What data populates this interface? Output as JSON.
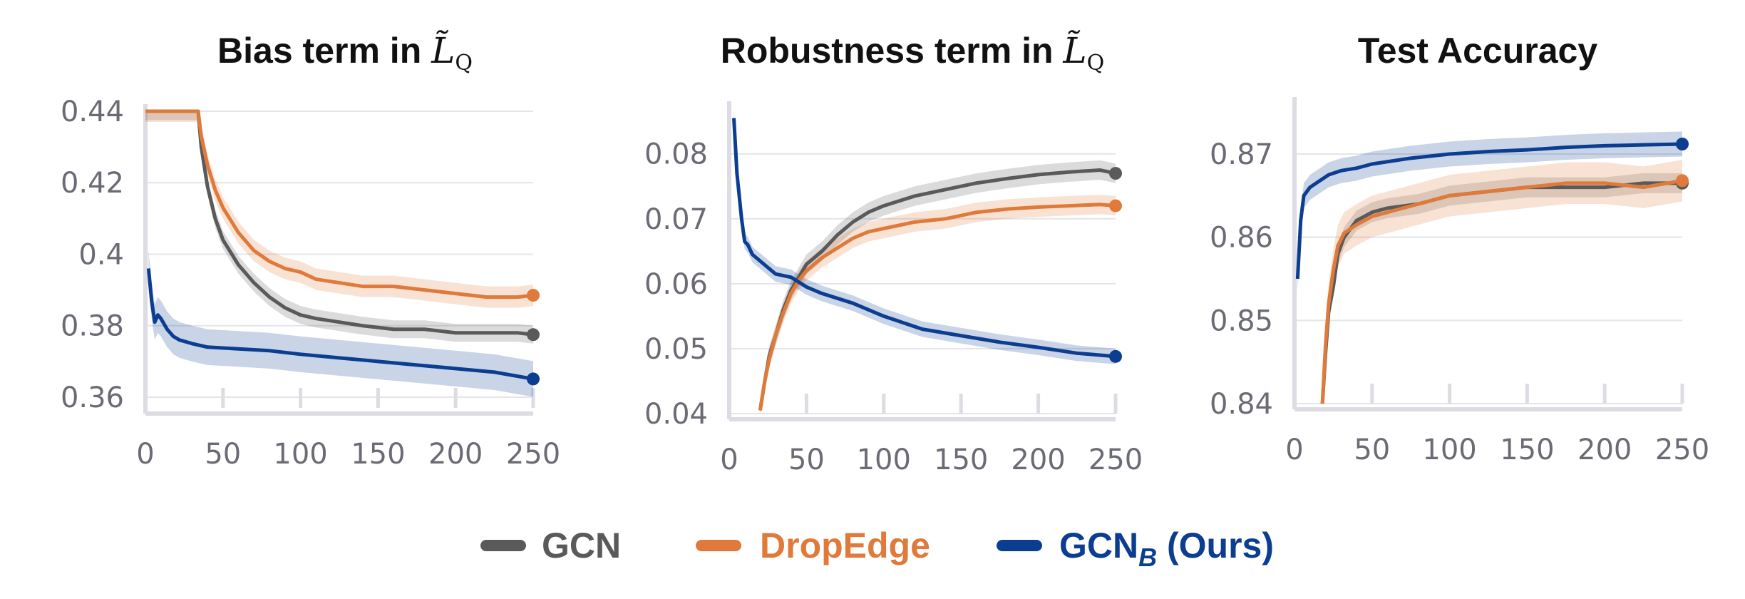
{
  "legend": [
    {
      "label": "GCN",
      "color": "#5a5a5a"
    },
    {
      "label": "DropEdge",
      "color": "#e07a3a"
    },
    {
      "label_main": "GCN",
      "label_sub": "B",
      "label_tail": " (Ours)",
      "color": "#0b3d91"
    }
  ],
  "chart_data": [
    {
      "type": "line",
      "title": "Bias term in ",
      "title_math": "L̃",
      "title_sub": "Q",
      "xlabel": "",
      "ylabel": "",
      "xlim": [
        0,
        250
      ],
      "ylim": [
        0.357,
        0.44
      ],
      "xticks": [
        0,
        50,
        100,
        150,
        200,
        250
      ],
      "xtick_labels": [
        "0",
        "50",
        "100",
        "150",
        "200",
        "250"
      ],
      "yticks": [
        0.36,
        0.38,
        0.4,
        0.42,
        0.44
      ],
      "ytick_labels": [
        "0.36",
        "0.38",
        "0.4",
        "0.42",
        "0.44"
      ],
      "series": [
        {
          "name": "GCN",
          "color": "#5a5a5a",
          "x": [
            0,
            34,
            36,
            40,
            45,
            50,
            60,
            70,
            80,
            90,
            100,
            110,
            125,
            140,
            160,
            180,
            200,
            220,
            240,
            250
          ],
          "y": [
            0.44,
            0.44,
            0.43,
            0.419,
            0.41,
            0.404,
            0.397,
            0.392,
            0.388,
            0.385,
            0.383,
            0.382,
            0.381,
            0.38,
            0.379,
            0.379,
            0.378,
            0.378,
            0.378,
            0.3775
          ],
          "band": 0.0025
        },
        {
          "name": "DropEdge",
          "color": "#e07a3a",
          "x": [
            0,
            34,
            36,
            40,
            45,
            50,
            60,
            70,
            80,
            90,
            100,
            110,
            125,
            140,
            160,
            180,
            200,
            220,
            240,
            250
          ],
          "y": [
            0.44,
            0.44,
            0.433,
            0.425,
            0.418,
            0.413,
            0.406,
            0.401,
            0.398,
            0.396,
            0.395,
            0.393,
            0.392,
            0.391,
            0.391,
            0.39,
            0.389,
            0.388,
            0.388,
            0.3885
          ],
          "band": 0.003
        },
        {
          "name": "GCN_B (Ours)",
          "color": "#0b3d91",
          "x": [
            2,
            4,
            6,
            8,
            10,
            14,
            18,
            22,
            30,
            40,
            60,
            80,
            100,
            125,
            150,
            175,
            200,
            225,
            250
          ],
          "y": [
            0.396,
            0.387,
            0.381,
            0.383,
            0.382,
            0.379,
            0.377,
            0.376,
            0.375,
            0.374,
            0.3735,
            0.373,
            0.372,
            0.371,
            0.37,
            0.369,
            0.368,
            0.367,
            0.3651
          ],
          "band": 0.005
        }
      ]
    },
    {
      "type": "line",
      "title": "Robustness term in ",
      "title_math": "L̃",
      "title_sub": "Q",
      "xlabel": "",
      "ylabel": "",
      "xlim": [
        0,
        250
      ],
      "ylim": [
        0.04,
        0.087
      ],
      "xticks": [
        0,
        50,
        100,
        150,
        200,
        250
      ],
      "xtick_labels": [
        "0",
        "50",
        "100",
        "150",
        "200",
        "250"
      ],
      "yticks": [
        0.04,
        0.05,
        0.06,
        0.07,
        0.08
      ],
      "ytick_labels": [
        "0.04",
        "0.05",
        "0.06",
        "0.07",
        "0.08"
      ],
      "series": [
        {
          "name": "GCN",
          "color": "#5a5a5a",
          "x": [
            20,
            23,
            26,
            30,
            35,
            40,
            45,
            50,
            60,
            70,
            80,
            90,
            100,
            120,
            140,
            160,
            180,
            200,
            220,
            240,
            250
          ],
          "y": [
            0.0405,
            0.045,
            0.049,
            0.052,
            0.056,
            0.059,
            0.061,
            0.063,
            0.065,
            0.0675,
            0.0695,
            0.071,
            0.072,
            0.0735,
            0.0745,
            0.0755,
            0.0762,
            0.0768,
            0.0772,
            0.0775,
            0.077
          ],
          "band": 0.0015
        },
        {
          "name": "DropEdge",
          "color": "#e07a3a",
          "x": [
            20,
            23,
            26,
            30,
            35,
            40,
            45,
            50,
            60,
            70,
            80,
            90,
            100,
            120,
            140,
            160,
            180,
            200,
            220,
            240,
            250
          ],
          "y": [
            0.0405,
            0.045,
            0.0485,
            0.052,
            0.0555,
            0.0585,
            0.0605,
            0.062,
            0.064,
            0.0655,
            0.067,
            0.068,
            0.0685,
            0.0695,
            0.07,
            0.071,
            0.0715,
            0.0718,
            0.072,
            0.0722,
            0.072
          ],
          "band": 0.0015
        },
        {
          "name": "GCN_B (Ours)",
          "color": "#0b3d91",
          "x": [
            3,
            5,
            8,
            10,
            12,
            15,
            20,
            25,
            30,
            40,
            50,
            60,
            80,
            100,
            125,
            150,
            175,
            200,
            225,
            250
          ],
          "y": [
            0.0855,
            0.077,
            0.07,
            0.0665,
            0.066,
            0.0645,
            0.0635,
            0.0625,
            0.0615,
            0.061,
            0.0595,
            0.0585,
            0.057,
            0.055,
            0.053,
            0.052,
            0.051,
            0.0502,
            0.0493,
            0.0488
          ],
          "band": 0.0012
        }
      ]
    },
    {
      "type": "line",
      "title": "Test Accuracy",
      "title_math": "",
      "title_sub": "",
      "xlabel": "",
      "ylabel": "",
      "xlim": [
        0,
        250
      ],
      "ylim": [
        0.84,
        0.876
      ],
      "xticks": [
        0,
        50,
        100,
        150,
        200,
        250
      ],
      "xtick_labels": [
        "0",
        "50",
        "100",
        "150",
        "200",
        "250"
      ],
      "yticks": [
        0.84,
        0.85,
        0.86,
        0.87
      ],
      "ytick_labels": [
        "0.84",
        "0.85",
        "0.86",
        "0.87"
      ],
      "series": [
        {
          "name": "GCN",
          "color": "#5a5a5a",
          "x": [
            18,
            20,
            22,
            25,
            28,
            32,
            36,
            40,
            50,
            60,
            80,
            100,
            125,
            150,
            175,
            200,
            225,
            250
          ],
          "y": [
            0.84,
            0.846,
            0.851,
            0.854,
            0.858,
            0.86,
            0.861,
            0.862,
            0.863,
            0.8635,
            0.864,
            0.865,
            0.8655,
            0.866,
            0.866,
            0.866,
            0.8665,
            0.8665
          ],
          "band": 0.0012
        },
        {
          "name": "DropEdge",
          "color": "#e07a3a",
          "x": [
            18,
            20,
            22,
            25,
            28,
            32,
            36,
            40,
            50,
            60,
            80,
            100,
            125,
            150,
            175,
            200,
            225,
            250
          ],
          "y": [
            0.84,
            0.847,
            0.852,
            0.856,
            0.859,
            0.8605,
            0.861,
            0.8615,
            0.8625,
            0.863,
            0.864,
            0.865,
            0.8655,
            0.866,
            0.8665,
            0.8665,
            0.866,
            0.8668
          ],
          "band": 0.0025
        },
        {
          "name": "GCN_B (Ours)",
          "color": "#0b3d91",
          "x": [
            2,
            4,
            6,
            8,
            10,
            14,
            18,
            22,
            30,
            40,
            50,
            75,
            100,
            125,
            150,
            175,
            200,
            225,
            250
          ],
          "y": [
            0.855,
            0.862,
            0.865,
            0.8655,
            0.866,
            0.8665,
            0.867,
            0.8675,
            0.868,
            0.8683,
            0.8688,
            0.8695,
            0.87,
            0.8703,
            0.8705,
            0.8708,
            0.871,
            0.8711,
            0.8712
          ],
          "band": 0.0015
        }
      ]
    }
  ]
}
